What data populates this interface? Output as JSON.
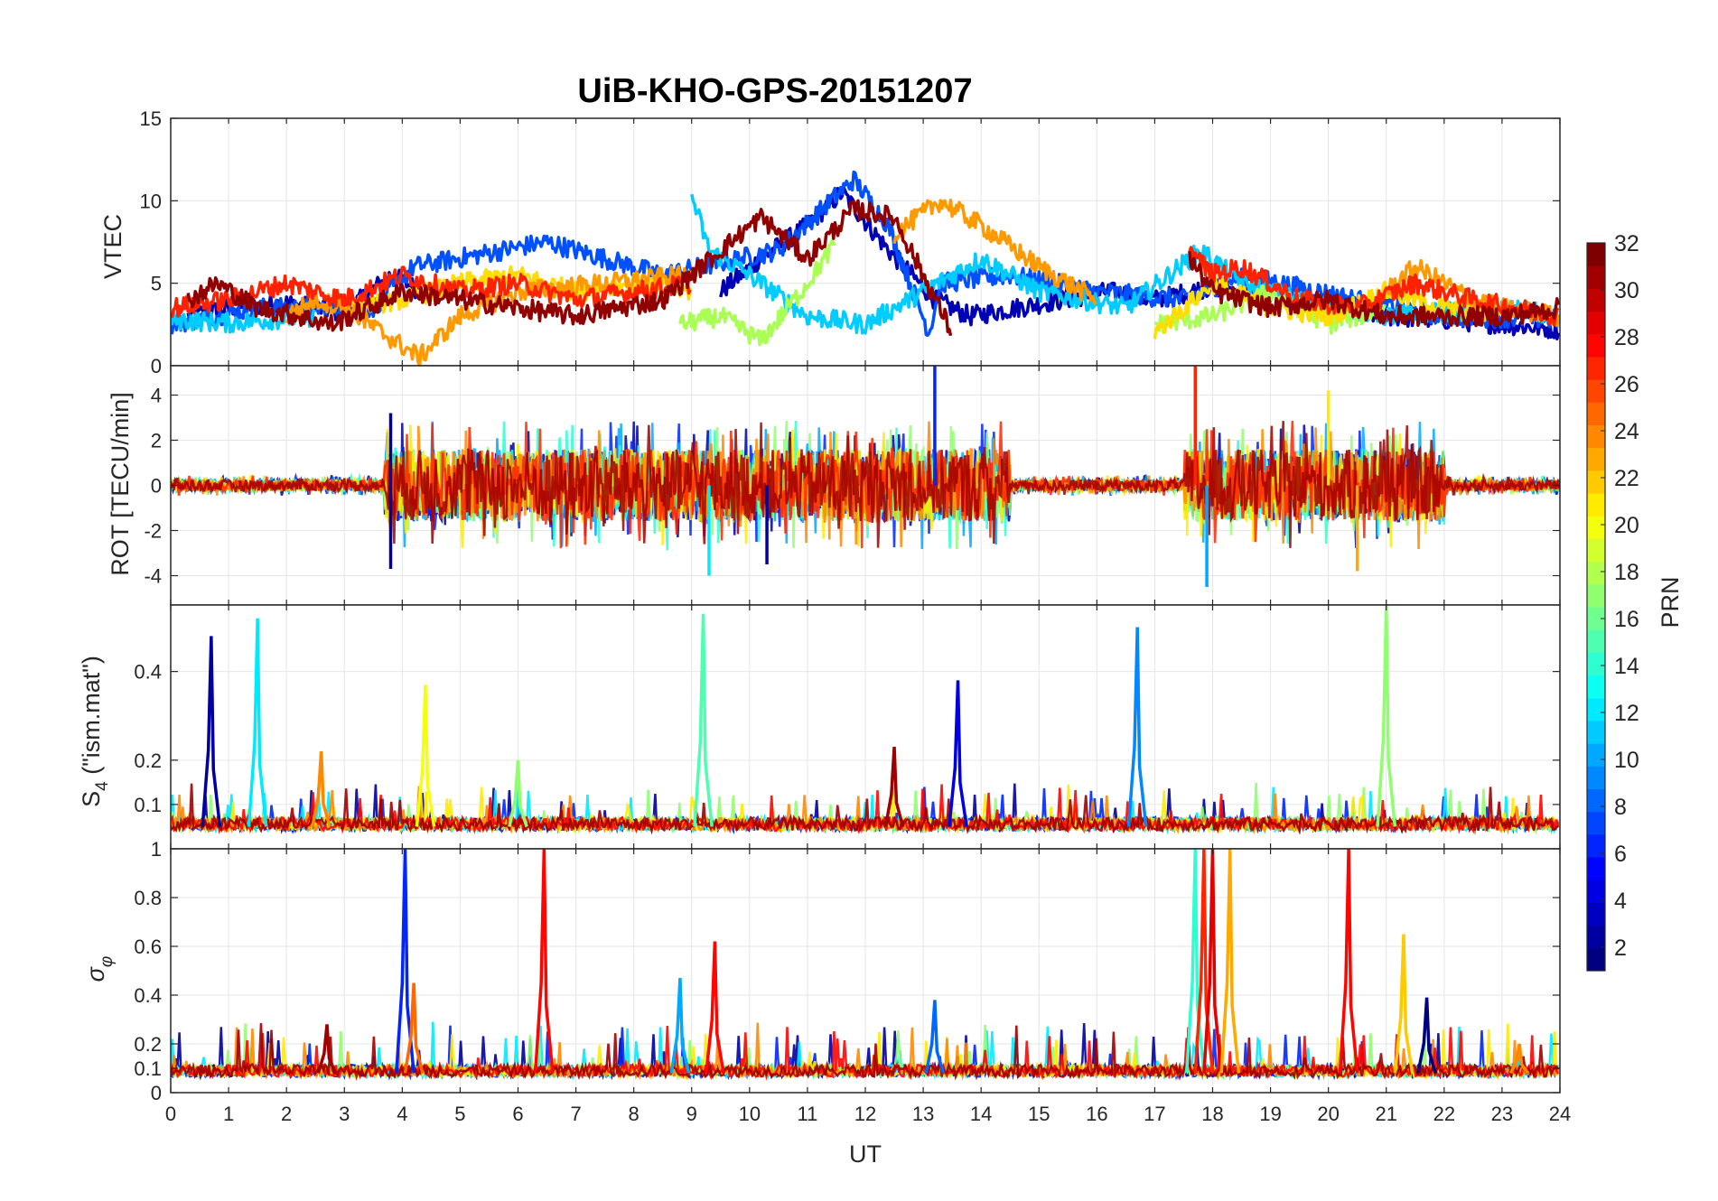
{
  "figure": {
    "title": "UiB-KHO-GPS-20151207",
    "xlabel": "UT"
  },
  "colorbar": {
    "label": "PRN",
    "ticks": [
      "2",
      "4",
      "6",
      "8",
      "10",
      "12",
      "14",
      "16",
      "18",
      "20",
      "22",
      "24",
      "26",
      "28",
      "30",
      "32"
    ],
    "range": [
      1,
      32
    ],
    "colormap": "jet"
  },
  "chart_data": [
    {
      "type": "line",
      "panel": "vtec",
      "title": "UiB-KHO-GPS-20151207",
      "ylabel": "VTEC",
      "xlabel": "",
      "xlim": [
        0,
        24
      ],
      "ylim": [
        0,
        15
      ],
      "grid": true,
      "yticks": [
        0,
        5,
        10,
        15
      ],
      "ytick_labels": [
        "0",
        "5",
        "10",
        "15"
      ],
      "series": [
        {
          "prn": 2,
          "color": "#0000b4",
          "x": [
            0.3,
            1.0,
            2.0,
            3.0,
            3.8,
            4.5,
            9.5,
            10.2,
            11.0,
            11.6,
            12.4,
            13.2,
            13.8,
            16.2,
            17.0,
            18.0,
            19.0,
            20.0,
            21.0,
            22.0,
            23.0,
            24.0
          ],
          "y": [
            3.0,
            3.5,
            3.8,
            3.2,
            5.5,
            4.2,
            4.5,
            6.5,
            8.5,
            10.5,
            7.0,
            4.0,
            3.0,
            4.5,
            4.0,
            4.8,
            4.2,
            3.5,
            3.0,
            2.8,
            2.5,
            2.2
          ]
        },
        {
          "prn": 6,
          "color": "#0050ff",
          "x": [
            0.0,
            1.5,
            3.5,
            4.2,
            6.5,
            8.5,
            10.5,
            11.8,
            12.4,
            13.1,
            13.3,
            14.5,
            16.0,
            17.5,
            18.5,
            20.5,
            22.0,
            24.0
          ],
          "y": [
            2.5,
            3.5,
            3.5,
            6.0,
            7.5,
            5.5,
            7.0,
            11.3,
            8.5,
            2.0,
            5.0,
            5.5,
            4.5,
            4.0,
            5.5,
            4.0,
            3.0,
            2.8
          ]
        },
        {
          "prn": 12,
          "color": "#00ccff",
          "x": [
            0.0,
            1.0,
            2.5,
            9.0,
            9.3,
            10.0,
            11.0,
            12.0,
            14.0,
            15.0,
            16.5,
            17.8,
            18.5,
            19.5,
            21.0,
            23.0,
            24.0
          ],
          "y": [
            2.8,
            2.6,
            3.0,
            10.3,
            7.0,
            5.5,
            3.0,
            2.5,
            6.5,
            4.5,
            3.5,
            7.0,
            5.0,
            4.0,
            3.0,
            3.5,
            3.0
          ]
        },
        {
          "prn": 17,
          "color": "#aaff55",
          "x": [
            8.8,
            9.5,
            10.2,
            11.0,
            11.5,
            17.0,
            18.0,
            19.0,
            20.0,
            21.0
          ],
          "y": [
            2.5,
            3.0,
            1.5,
            5.0,
            7.5,
            2.5,
            3.0,
            4.5,
            2.5,
            3.5
          ]
        },
        {
          "prn": 21,
          "color": "#ffdd00",
          "x": [
            3.0,
            4.0,
            5.0,
            6.0,
            7.0,
            8.0,
            9.0,
            17.0,
            18.0,
            19.0,
            20.0,
            21.0,
            22.0,
            23.0
          ],
          "y": [
            3.5,
            4.0,
            5.0,
            5.5,
            4.5,
            5.0,
            4.5,
            2.0,
            5.0,
            3.5,
            3.0,
            4.5,
            3.5,
            3.0
          ]
        },
        {
          "prn": 23,
          "color": "#ff9900",
          "x": [
            2.0,
            2.5,
            3.0,
            4.3,
            5.0,
            6.0,
            7.5,
            9.0,
            12.5,
            13.3,
            14.0,
            15.0,
            16.0,
            21.0,
            21.5,
            22.5,
            23.0,
            24.0
          ],
          "y": [
            3.0,
            4.0,
            3.5,
            0.5,
            3.0,
            4.5,
            5.0,
            5.5,
            8.0,
            10.0,
            8.5,
            6.0,
            4.0,
            4.5,
            6.0,
            4.0,
            3.5,
            3.0
          ]
        },
        {
          "prn": 27,
          "color": "#ff2200",
          "x": [
            0.0,
            1.0,
            2.0,
            3.0,
            4.0,
            5.0,
            6.0,
            7.0,
            8.0,
            9.0,
            17.6,
            18.0,
            18.5,
            19.5,
            20.5,
            21.5,
            22.5,
            24.0
          ],
          "y": [
            3.5,
            4.0,
            5.0,
            4.0,
            5.5,
            4.5,
            5.0,
            4.0,
            4.5,
            5.0,
            7.0,
            5.5,
            6.0,
            4.0,
            3.5,
            5.0,
            4.0,
            3.0
          ]
        },
        {
          "prn": 31,
          "color": "#900000",
          "x": [
            0.3,
            0.8,
            1.5,
            2.2,
            2.8,
            4.0,
            6.0,
            7.0,
            8.5,
            9.5,
            10.2,
            11.0,
            11.8,
            12.5,
            13.5,
            17.6,
            18.0,
            19.0,
            20.0,
            21.0,
            22.0,
            23.0,
            24.0
          ],
          "y": [
            4.0,
            5.0,
            3.5,
            3.0,
            2.5,
            4.5,
            3.5,
            3.0,
            4.0,
            7.0,
            9.0,
            6.5,
            9.5,
            9.0,
            2.0,
            6.5,
            4.5,
            3.5,
            4.0,
            3.0,
            3.0,
            3.0,
            3.5
          ]
        }
      ]
    },
    {
      "type": "line",
      "panel": "rot",
      "ylabel": "ROT [TECU/min]",
      "xlabel": "",
      "xlim": [
        0,
        24
      ],
      "ylim": [
        -5.3,
        5.3
      ],
      "grid": true,
      "yticks": [
        -4,
        -2,
        0,
        2,
        4
      ],
      "ytick_labels": [
        "-4",
        "-2",
        "0",
        "2",
        "4"
      ],
      "description_values": {
        "noise_band": [
          -1.0,
          1.0
        ],
        "spikes": [
          {
            "x": 3.8,
            "y": -3.7,
            "prn": 2
          },
          {
            "x": 3.8,
            "y": 3.2,
            "prn": 2
          },
          {
            "x": 9.3,
            "y": -4.0,
            "prn": 12
          },
          {
            "x": 10.3,
            "y": -3.5,
            "prn": 2
          },
          {
            "x": 13.2,
            "y": 5.3,
            "prn": 6
          },
          {
            "x": 17.7,
            "y": 5.3,
            "prn": 27
          },
          {
            "x": 17.9,
            "y": -4.5,
            "prn": 10
          },
          {
            "x": 20.0,
            "y": 4.2,
            "prn": 21
          },
          {
            "x": 20.5,
            "y": -3.8,
            "prn": 23
          }
        ]
      }
    },
    {
      "type": "line",
      "panel": "s4",
      "ylabel": "S4 (\"ism.mat\")",
      "xlabel": "",
      "xlim": [
        0,
        24
      ],
      "ylim": [
        0,
        0.55
      ],
      "grid": true,
      "yticks": [
        0.1,
        0.2,
        0.4
      ],
      "ytick_labels": [
        "0.1",
        "0.2",
        "0.4"
      ],
      "spikes": [
        {
          "x": 0.7,
          "y": 0.48,
          "prn": 2
        },
        {
          "x": 1.5,
          "y": 0.52,
          "prn": 12
        },
        {
          "x": 2.6,
          "y": 0.22,
          "prn": 24
        },
        {
          "x": 4.4,
          "y": 0.37,
          "prn": 20
        },
        {
          "x": 6.0,
          "y": 0.2,
          "prn": 17
        },
        {
          "x": 9.2,
          "y": 0.53,
          "prn": 15
        },
        {
          "x": 12.5,
          "y": 0.23,
          "prn": 31
        },
        {
          "x": 13.6,
          "y": 0.38,
          "prn": 4
        },
        {
          "x": 16.7,
          "y": 0.5,
          "prn": 9
        },
        {
          "x": 21.0,
          "y": 0.55,
          "prn": 17
        }
      ],
      "baseline": 0.05
    },
    {
      "type": "line",
      "panel": "sigma_phi",
      "ylabel": "σφ",
      "xlabel": "UT",
      "xlim": [
        0,
        24
      ],
      "ylim": [
        0,
        1
      ],
      "grid": true,
      "yticks": [
        0,
        0.1,
        0.2,
        0.4,
        0.6,
        0.8,
        1
      ],
      "ytick_labels": [
        "0",
        "0.1",
        "0.2",
        "0.4",
        "0.6",
        "0.8",
        "1"
      ],
      "xticks": [
        0,
        1,
        2,
        3,
        4,
        5,
        6,
        7,
        8,
        9,
        10,
        11,
        12,
        13,
        14,
        15,
        16,
        17,
        18,
        19,
        20,
        21,
        22,
        23,
        24
      ],
      "xtick_labels": [
        "0",
        "1",
        "2",
        "3",
        "4",
        "5",
        "6",
        "7",
        "8",
        "9",
        "10",
        "11",
        "12",
        "13",
        "14",
        "15",
        "16",
        "17",
        "18",
        "19",
        "20",
        "21",
        "22",
        "23",
        "24"
      ],
      "spikes": [
        {
          "x": 2.7,
          "y": 0.28,
          "prn": 31
        },
        {
          "x": 4.05,
          "y": 1.0,
          "prn": 6
        },
        {
          "x": 4.2,
          "y": 0.45,
          "prn": 25
        },
        {
          "x": 6.45,
          "y": 1.0,
          "prn": 28
        },
        {
          "x": 9.4,
          "y": 0.62,
          "prn": 28
        },
        {
          "x": 8.8,
          "y": 0.47,
          "prn": 10
        },
        {
          "x": 13.2,
          "y": 0.38,
          "prn": 8
        },
        {
          "x": 17.7,
          "y": 1.0,
          "prn": 14
        },
        {
          "x": 17.85,
          "y": 1.0,
          "prn": 27
        },
        {
          "x": 18.0,
          "y": 1.0,
          "prn": 29
        },
        {
          "x": 18.3,
          "y": 1.0,
          "prn": 23
        },
        {
          "x": 20.35,
          "y": 1.0,
          "prn": 28
        },
        {
          "x": 21.3,
          "y": 0.65,
          "prn": 22
        },
        {
          "x": 21.7,
          "y": 0.39,
          "prn": 1
        },
        {
          "x": 23.3,
          "y": 0.2,
          "prn": 24
        }
      ],
      "baseline": 0.08
    }
  ],
  "s4_label_parts": {
    "main": "S",
    "sub": "4",
    "rest": " (\"ism.mat\")"
  },
  "sigma_label_parts": {
    "main": "σ",
    "sub": "φ"
  }
}
